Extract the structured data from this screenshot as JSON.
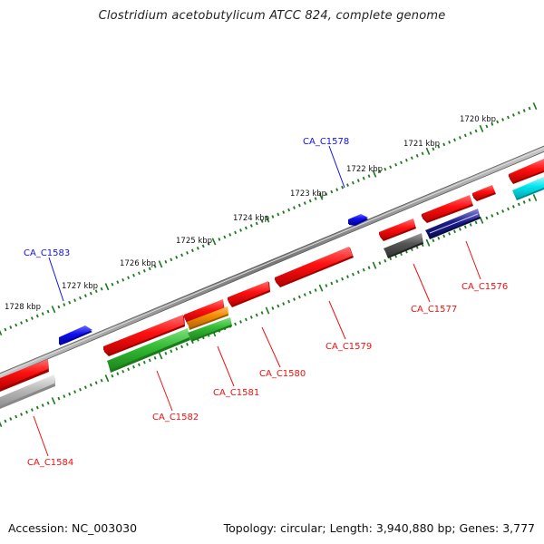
{
  "title": "Clostridium acetobutylicum ATCC 824, complete genome",
  "footer": {
    "accession": "Accession: NC_003030",
    "summary": "Topology: circular; Length: 3,940,880 bp; Genes: 3,777"
  },
  "scale_labels": [
    "1720 kbp",
    "1721 kbp",
    "1722 kbp",
    "1723 kbp",
    "1724 kbp",
    "1725 kbp",
    "1726 kbp",
    "1727 kbp",
    "1728 kbp"
  ],
  "gene_labels": {
    "plus_strand": [
      "CA_C1578",
      "CA_C1583"
    ],
    "minus_strand": [
      "CA_C1576",
      "CA_C1577",
      "CA_C1579",
      "CA_C1580",
      "CA_C1581",
      "CA_C1582",
      "CA_C1584"
    ]
  },
  "colors": {
    "plus_strand_gene": "#1010ee",
    "minus_strand_gene": "#ee1010",
    "backbone": "#888888",
    "scale_ticks": "#1a7a1a",
    "cyan_feature": "#00e5ee",
    "green_feature": "#33bb33",
    "orange_feature": "#f08a00",
    "navy_feature": "#1c1c8c",
    "dark_gray_feature": "#555555",
    "light_gray_feature": "#bbbbbb"
  }
}
